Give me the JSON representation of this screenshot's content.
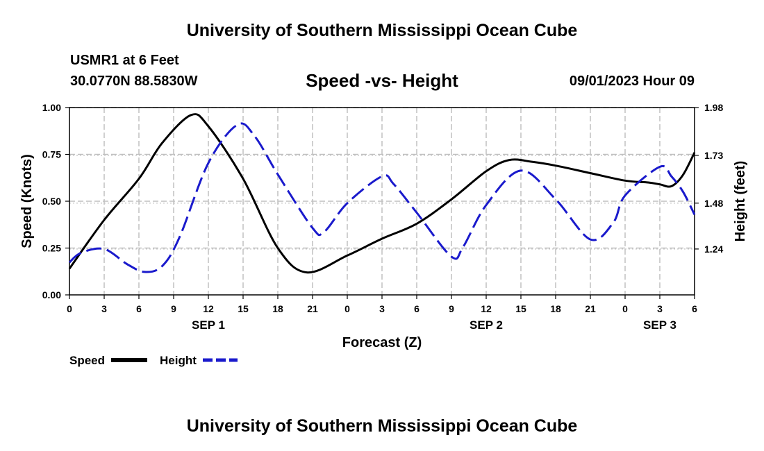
{
  "header": {
    "title": "University of Southern Mississippi Ocean Cube",
    "station": "USMR1 at 6 Feet",
    "coords": "30.0770N  88.5830W",
    "subtitle": "Speed -vs- Height",
    "datetime": "09/01/2023 Hour 09",
    "footer_title": "University of Southern Mississippi Ocean Cube"
  },
  "legend": {
    "speed_label": "Speed",
    "height_label": "Height"
  },
  "colors": {
    "speed": "#000000",
    "height": "#1a1acc",
    "grid": "#c0c0c0"
  },
  "chart_data": {
    "type": "line",
    "xlabel": "Forecast (Z)",
    "ylabel": "Speed (Knots)",
    "y2label": "Height (feet)",
    "x_range_hours": [
      0,
      54
    ],
    "x_tick_labels": [
      "0",
      "3",
      "6",
      "9",
      "12",
      "15",
      "18",
      "21",
      "0",
      "3",
      "6",
      "9",
      "12",
      "15",
      "18",
      "21",
      "0",
      "3",
      "6"
    ],
    "day_labels": [
      {
        "hour": 12,
        "label": "SEP 1"
      },
      {
        "hour": 36,
        "label": "SEP 2"
      },
      {
        "hour": 51,
        "label": "SEP 3"
      }
    ],
    "ylim": [
      0,
      1
    ],
    "y_ticks": [
      "0.00",
      "0.25",
      "0.50",
      "0.75",
      "1.00"
    ],
    "y2lim": [
      1.0,
      1.98
    ],
    "y2_ticks": [
      "1.24",
      "1.48",
      "1.73",
      "1.98"
    ],
    "series": [
      {
        "name": "Speed",
        "axis": "left",
        "style": "solid",
        "x": [
          0,
          3,
          6,
          8,
          10.5,
          12,
          15,
          18,
          20.5,
          24,
          27,
          30,
          33,
          36,
          38,
          40,
          42,
          45,
          48,
          50,
          51,
          52,
          53,
          54
        ],
        "values": [
          0.14,
          0.4,
          0.62,
          0.81,
          0.96,
          0.9,
          0.62,
          0.25,
          0.12,
          0.21,
          0.3,
          0.38,
          0.51,
          0.66,
          0.72,
          0.71,
          0.69,
          0.65,
          0.61,
          0.6,
          0.59,
          0.58,
          0.64,
          0.76
        ]
      },
      {
        "name": "Height",
        "axis": "right",
        "style": "dashed",
        "x": [
          0,
          1,
          3,
          5,
          6.5,
          8,
          9.5,
          12,
          14.5,
          16,
          18,
          21,
          22,
          24,
          27,
          28,
          30,
          33,
          34,
          36,
          39,
          42,
          45,
          47,
          48,
          51,
          52,
          53,
          54
        ],
        "values": [
          1.17,
          1.22,
          1.24,
          1.16,
          1.12,
          1.15,
          1.3,
          1.69,
          1.89,
          1.83,
          1.63,
          1.35,
          1.33,
          1.48,
          1.62,
          1.58,
          1.43,
          1.2,
          1.25,
          1.47,
          1.65,
          1.5,
          1.29,
          1.38,
          1.52,
          1.67,
          1.62,
          1.54,
          1.42
        ]
      }
    ]
  }
}
